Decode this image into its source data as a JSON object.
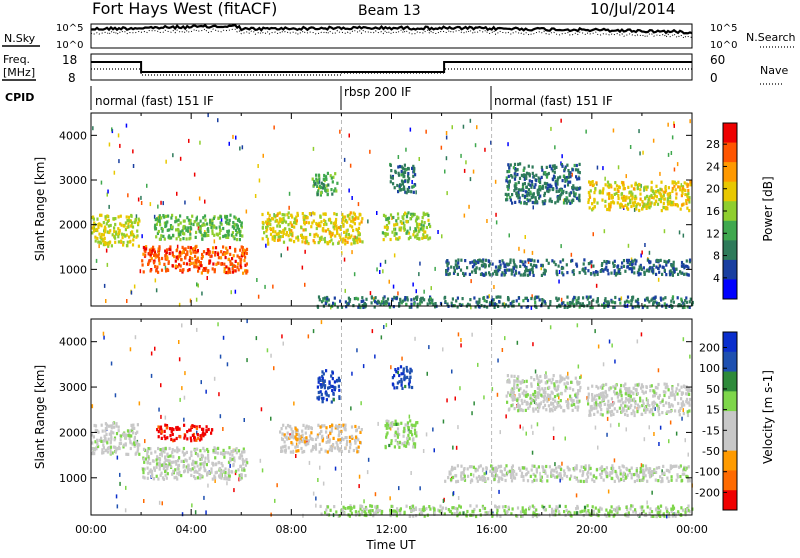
{
  "header": {
    "radar_title": "Fort Hays West (fitACF)",
    "beam": "Beam 13",
    "date": "10/Jul/2014"
  },
  "top_panels": {
    "noise_left_label": "N.Sky",
    "noise_left_ticks": [
      "10^5",
      "10^0"
    ],
    "noise_right_ticks": [
      "10^5",
      "10^0"
    ],
    "noise_right_label": "N.Search",
    "freq_label_line1": "Freq.",
    "freq_label_line2": "[MHz]",
    "freq_ticks": [
      "18",
      "8"
    ],
    "nave_ticks": [
      "60",
      "0"
    ],
    "nave_label": "Nave",
    "cpid_label": "CPID",
    "cpid_segments": [
      "normal (fast) 151 IF",
      "rbsp 200 IF",
      "normal (fast) 151 IF"
    ]
  },
  "colors": {
    "power_scale": [
      "#0000ff",
      "#1a3fa0",
      "#2e7a5a",
      "#3fa84e",
      "#8fce2e",
      "#e8c800",
      "#ff9900",
      "#ff5500",
      "#ee0000"
    ],
    "velocity_scale": [
      "#0a2ecc",
      "#1e50b0",
      "#2e8a3a",
      "#7ed64a",
      "#c8c8c8",
      "#c8c8c8",
      "#ff9b00",
      "#ff6a00",
      "#f00000"
    ]
  },
  "chart_data": [
    {
      "type": "heatmap",
      "name": "power",
      "ylabel": "Slant Range [km]",
      "yticks": [
        "4000",
        "3000",
        "2000",
        "1000"
      ],
      "ylim": [
        180,
        4500
      ],
      "xlim": [
        0,
        24
      ],
      "colorbar_label": "Power [dB]",
      "colorbar_ticks": [
        "28",
        "24",
        "20",
        "16",
        "12",
        "8",
        "4"
      ],
      "zlim": [
        0,
        30
      ],
      "regions": [
        {
          "t0": 0.0,
          "t1": 1.9,
          "r0": 1550,
          "r1": 2250,
          "v": 17
        },
        {
          "t0": 2.0,
          "t1": 6.2,
          "r0": 950,
          "r1": 1550,
          "v": 25
        },
        {
          "t0": 2.5,
          "t1": 6.0,
          "r0": 1700,
          "r1": 2250,
          "v": 13
        },
        {
          "t0": 6.8,
          "t1": 10.8,
          "r0": 1600,
          "r1": 2300,
          "v": 18
        },
        {
          "t0": 8.8,
          "t1": 9.8,
          "r0": 2700,
          "r1": 3200,
          "v": 12
        },
        {
          "t0": 11.6,
          "t1": 13.5,
          "r0": 1700,
          "r1": 2300,
          "v": 15
        },
        {
          "t0": 11.9,
          "t1": 12.9,
          "r0": 2750,
          "r1": 3400,
          "v": 8
        },
        {
          "t0": 14.1,
          "t1": 23.9,
          "r0": 900,
          "r1": 1250,
          "v": 7
        },
        {
          "t0": 16.5,
          "t1": 19.5,
          "r0": 2500,
          "r1": 3400,
          "v": 8
        },
        {
          "t0": 19.8,
          "t1": 23.9,
          "r0": 2350,
          "r1": 3000,
          "v": 18
        },
        {
          "t0": 9.0,
          "t1": 24.0,
          "r0": 180,
          "r1": 420,
          "v": 8
        }
      ]
    },
    {
      "type": "heatmap",
      "name": "velocity",
      "ylabel": "Slant Range [km]",
      "yticks": [
        "4000",
        "3000",
        "2000",
        "1000"
      ],
      "ylim": [
        180,
        4500
      ],
      "xlim": [
        0,
        24
      ],
      "xlabel": "Time UT",
      "xticks": [
        "00:00",
        "04:00",
        "08:00",
        "12:00",
        "16:00",
        "20:00",
        "00:00"
      ],
      "colorbar_label": "Velocity [m s-1]",
      "colorbar_ticks": [
        "200",
        "100",
        "50",
        "15",
        "-15",
        "-50",
        "-100",
        "-200"
      ],
      "zlim": [
        -250,
        250
      ],
      "regions": [
        {
          "t0": 0.0,
          "t1": 1.9,
          "r0": 1550,
          "r1": 2250,
          "v": 0
        },
        {
          "t0": 2.0,
          "t1": 6.2,
          "r0": 1000,
          "r1": 1700,
          "v": 0
        },
        {
          "t0": 2.6,
          "t1": 4.8,
          "r0": 1850,
          "r1": 2200,
          "v": -220
        },
        {
          "t0": 7.5,
          "t1": 10.8,
          "r0": 1600,
          "r1": 2200,
          "v": -60
        },
        {
          "t0": 9.0,
          "t1": 9.9,
          "r0": 2700,
          "r1": 3400,
          "v": 180
        },
        {
          "t0": 11.7,
          "t1": 13.0,
          "r0": 1700,
          "r1": 2300,
          "v": 40
        },
        {
          "t0": 12.0,
          "t1": 12.8,
          "r0": 3000,
          "r1": 3500,
          "v": 180
        },
        {
          "t0": 14.1,
          "t1": 23.9,
          "r0": 950,
          "r1": 1300,
          "v": 0
        },
        {
          "t0": 16.5,
          "t1": 19.5,
          "r0": 2500,
          "r1": 3300,
          "v": 0
        },
        {
          "t0": 19.8,
          "t1": 23.9,
          "r0": 2400,
          "r1": 3100,
          "v": 0
        },
        {
          "t0": 9.0,
          "t1": 24.0,
          "r0": 180,
          "r1": 420,
          "v": 40
        }
      ]
    }
  ]
}
